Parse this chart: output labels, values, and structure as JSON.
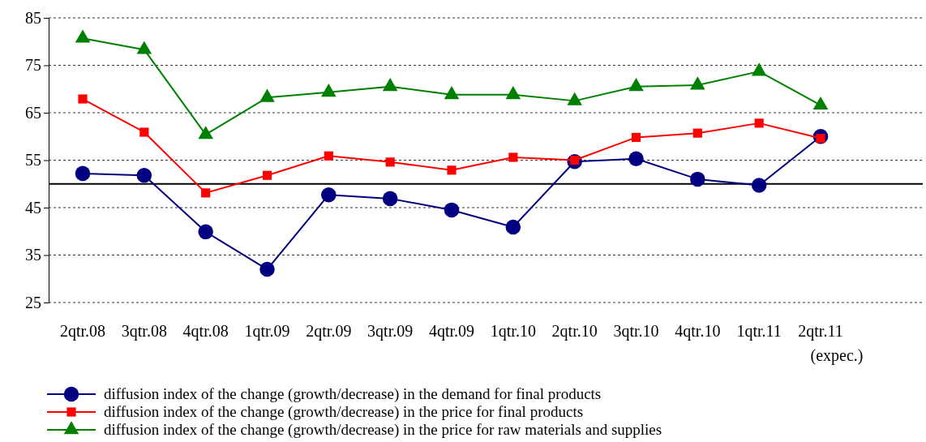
{
  "chart_data": {
    "type": "line",
    "categories": [
      "2qtr.08",
      "3qtr.08",
      "4qtr.08",
      "1qtr.09",
      "2qtr.09",
      "3qtr.09",
      "4qtr.09",
      "1qtr.10",
      "2qtr.10",
      "3qtr.10",
      "4qtr.10",
      "1qtr.11",
      "2qtr.11 (expec.)"
    ],
    "series": [
      {
        "name": "diffusion index of the change (growth/decrease) in the demand for final products",
        "color": "#000080",
        "marker": "circle",
        "values": [
          52.2,
          51.8,
          39.9,
          32,
          47.7,
          46.9,
          44.5,
          40.9,
          54.7,
          55.3,
          51,
          49.7,
          60
        ]
      },
      {
        "name": "diffusion index of the change (growth/decrease) in the price for final products",
        "color": "#ff0000",
        "marker": "square",
        "values": [
          67.9,
          60.9,
          48.1,
          51.8,
          55.9,
          54.6,
          52.9,
          55.6,
          55,
          59.8,
          60.7,
          62.8,
          59.6
        ]
      },
      {
        "name": "diffusion index of the change (growth/decrease) in the price for raw materials and supplies",
        "color": "#008000",
        "marker": "triangle",
        "values": [
          80.7,
          78.3,
          60.4,
          68.2,
          69.3,
          70.5,
          68.8,
          68.8,
          67.5,
          70.5,
          70.8,
          73.7,
          66.6
        ]
      }
    ],
    "ylim": [
      25,
      85
    ],
    "yticks": [
      25,
      35,
      45,
      55,
      65,
      75,
      85
    ],
    "grid": "y",
    "legend": "bottom",
    "line_style": "solid",
    "ref_lines": [
      {
        "axis": "y",
        "value": 50,
        "color": "#000000"
      }
    ]
  }
}
